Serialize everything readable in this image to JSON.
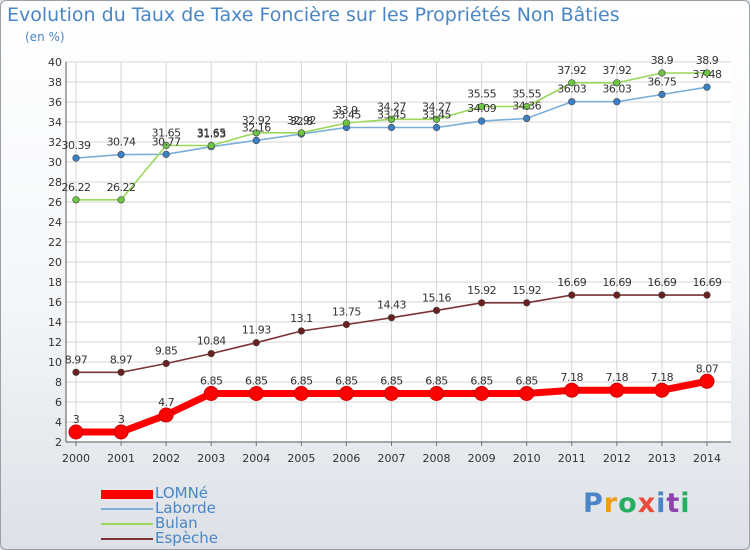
{
  "title": "Evolution du Taux de Taxe Foncière sur les Propriétés Non Bâties",
  "unit_label": "(en %)",
  "logo": {
    "text": "Proxiti",
    "letters": [
      "P",
      "r",
      "o",
      "x",
      "i",
      "t",
      "i"
    ],
    "colors": [
      "#4a86c5",
      "#f39c12",
      "#27ae60",
      "#e74c3c",
      "#4a86c5",
      "#8e44ad",
      "#27ae60"
    ]
  },
  "chart_data": {
    "type": "line",
    "title": "Evolution du Taux de Taxe Foncière sur les Propriétés Non Bâties",
    "ylabel": "(en %)",
    "x": [
      "2000",
      "2001",
      "2002",
      "2003",
      "2004",
      "2005",
      "2006",
      "2007",
      "2008",
      "2009",
      "2010",
      "2011",
      "2012",
      "2013",
      "2014"
    ],
    "ylim": [
      2,
      40
    ],
    "yticks": [
      "2",
      "4",
      "6",
      "8",
      "10",
      "12",
      "14",
      "16",
      "18",
      "20",
      "22",
      "24",
      "26",
      "28",
      "30",
      "32",
      "34",
      "36",
      "38",
      "40"
    ],
    "grid": true,
    "legend_position": "bottom-left",
    "series": [
      {
        "name": "LOMNé",
        "color": "#ff0000",
        "point_color": "#ff0000",
        "values": [
          3,
          3,
          4.7,
          6.85,
          6.85,
          6.85,
          6.85,
          6.85,
          6.85,
          6.85,
          6.85,
          7.18,
          7.18,
          7.18,
          8.07
        ],
        "labels": [
          "3",
          "3",
          "4.7",
          "6.85",
          "6.85",
          "6.85",
          "6.85",
          "6.85",
          "6.85",
          "6.85",
          "6.85",
          "7.18",
          "7.18",
          "7.18",
          "8.07"
        ]
      },
      {
        "name": "Laborde",
        "color": "#7aaed6",
        "point_color": "#3b7fc4",
        "values": [
          30.39,
          30.74,
          30.77,
          31.53,
          32.16,
          32.8,
          33.45,
          33.45,
          33.45,
          34.09,
          34.36,
          36.03,
          36.03,
          36.75,
          37.48
        ],
        "labels": [
          "30.39",
          "30.74",
          "30.77",
          "31.53",
          "32.16",
          "32.8",
          "33.45",
          "33.45",
          "33.45",
          "34.09",
          "34.36",
          "36.03",
          "36.03",
          "36.75",
          "37.48"
        ]
      },
      {
        "name": "Bulan",
        "color": "#9ad85a",
        "point_color": "#6cc644",
        "values": [
          26.22,
          26.22,
          31.65,
          31.65,
          32.92,
          32.92,
          33.9,
          34.27,
          34.27,
          35.55,
          35.55,
          37.92,
          37.92,
          38.9,
          38.9
        ],
        "labels": [
          "26.22",
          "26.22",
          "31.65",
          "31.65",
          "32.92",
          "32.92",
          "33.9",
          "34.27",
          "34.27",
          "35.55",
          "35.55",
          "37.92",
          "37.92",
          "38.9",
          "38.9"
        ]
      },
      {
        "name": "Espèche",
        "color": "#7a3535",
        "point_color": "#6b1f1f",
        "values": [
          8.97,
          8.97,
          9.85,
          10.84,
          11.93,
          13.1,
          13.75,
          14.43,
          15.16,
          15.92,
          15.92,
          16.69,
          16.69,
          16.69,
          16.69
        ],
        "labels": [
          "8.97",
          "8.97",
          "9.85",
          "10.84",
          "11.93",
          "13.1",
          "13.75",
          "14.43",
          "15.16",
          "15.92",
          "15.92",
          "16.69",
          "16.69",
          "16.69",
          "16.69"
        ]
      }
    ]
  }
}
